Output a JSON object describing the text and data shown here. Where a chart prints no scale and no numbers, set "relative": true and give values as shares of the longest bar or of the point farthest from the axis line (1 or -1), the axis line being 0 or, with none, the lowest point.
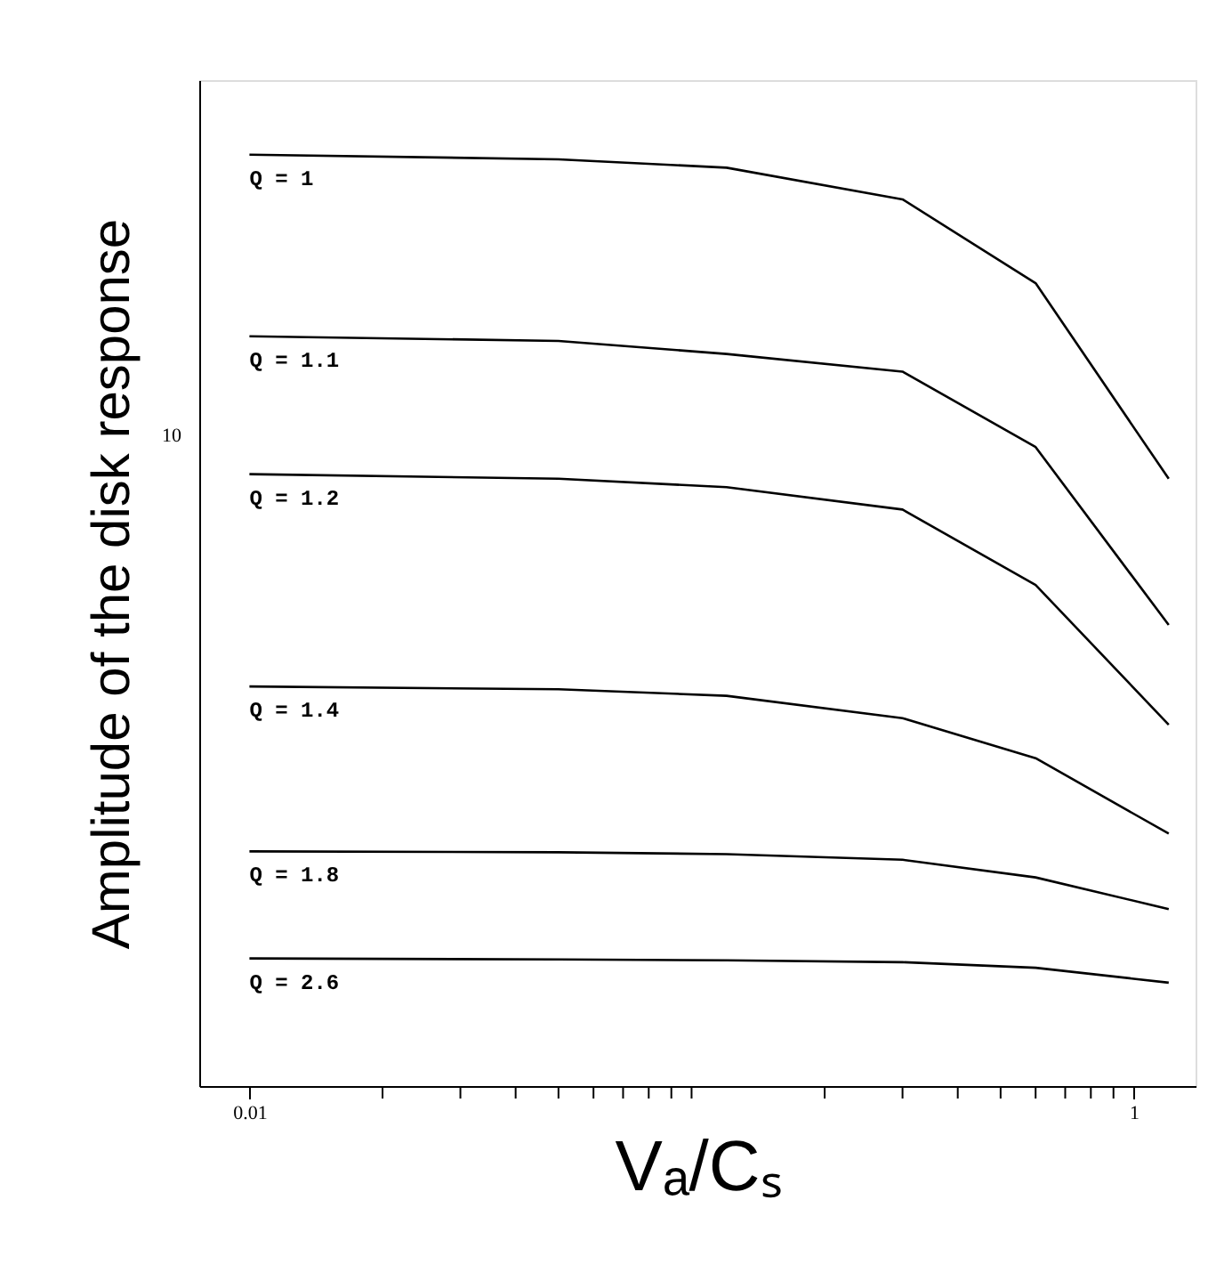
{
  "chart_data": {
    "type": "line",
    "xlabel": "Vₐ/Cₛ",
    "ylabel": "Amplitude of the disk response",
    "log": "x",
    "grid": false,
    "legend": false,
    "marker": "none",
    "line_style": "solid",
    "relative": true,
    "annotations": [
      "10"
    ],
    "xlim": [
      0.0077,
      1.38
    ],
    "xticks": [
      0.01,
      {
        "value": 0.02,
        "label": null
      },
      {
        "value": 0.03,
        "label": null
      },
      {
        "value": 0.04,
        "label": null
      },
      {
        "value": 0.05,
        "label": null
      },
      {
        "value": 0.06,
        "label": null
      },
      {
        "value": 0.07,
        "label": null
      },
      {
        "value": 0.08,
        "label": null
      },
      {
        "value": 0.09,
        "label": null
      },
      {
        "value": 0.1,
        "label": null
      },
      {
        "value": 0.2,
        "label": null
      },
      {
        "value": 0.3,
        "label": null
      },
      {
        "value": 0.4,
        "label": null
      },
      {
        "value": 0.5,
        "label": null
      },
      {
        "value": 0.6,
        "label": null
      },
      {
        "value": 0.7,
        "label": null
      },
      {
        "value": 0.8,
        "label": null
      },
      {
        "value": 0.9,
        "label": null
      },
      1
    ],
    "x": [
      0.01,
      0.05,
      0.12,
      0.3,
      0.6,
      1.2
    ],
    "series": [
      {
        "name": "Q = 1",
        "color": "#000000",
        "values": [
          1.0,
          0.995,
          0.986,
          0.952,
          0.862,
          0.652
        ]
      },
      {
        "name": "Q = 1.1",
        "color": "#000000",
        "values": [
          0.805,
          0.8,
          0.786,
          0.767,
          0.686,
          0.495
        ]
      },
      {
        "name": "Q = 1.2",
        "color": "#000000",
        "values": [
          0.657,
          0.652,
          0.643,
          0.619,
          0.538,
          0.388
        ]
      },
      {
        "name": "Q = 1.4",
        "color": "#000000",
        "values": [
          0.429,
          0.426,
          0.419,
          0.395,
          0.352,
          0.271
        ]
      },
      {
        "name": "Q = 1.8",
        "color": "#000000",
        "values": [
          0.252,
          0.251,
          0.249,
          0.243,
          0.224,
          0.19
        ]
      },
      {
        "name": "Q = 2.6",
        "color": "#000000",
        "values": [
          0.137,
          0.136,
          0.135,
          0.133,
          0.127,
          0.111
        ]
      }
    ]
  }
}
